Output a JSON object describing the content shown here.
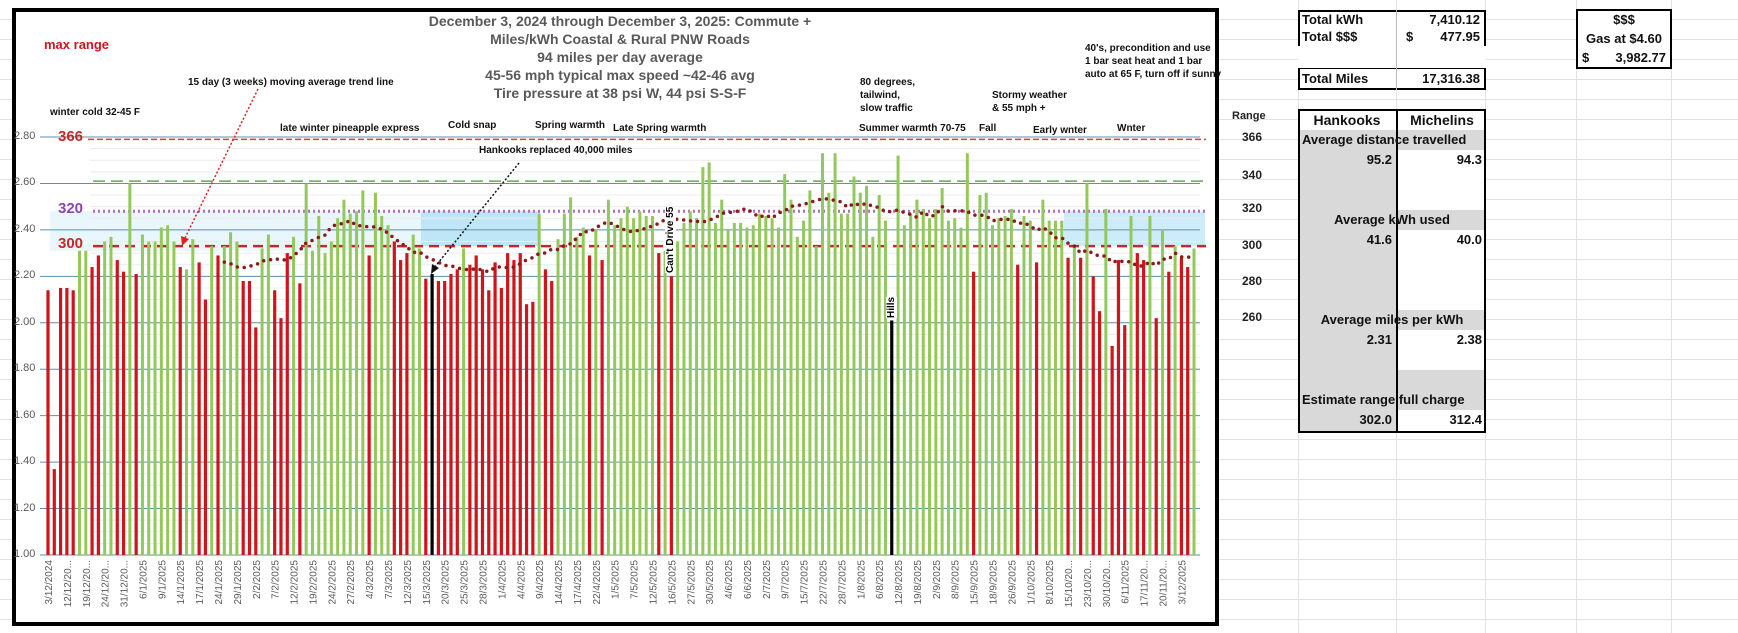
{
  "chart_data": {
    "type": "bar",
    "title_lines": [
      "December 3, 2024 through December 3,  2025: Commute +",
      "Miles/kWh Coastal & Rural PNW Roads",
      "94 miles per day average",
      "45-56 mph typical max speed ~42-46 avg",
      "Tire pressure at 38 psi W, 44 psi S-S-F"
    ],
    "ylim": [
      1.0,
      2.8
    ],
    "y_ticks": [
      "1.00",
      "1.20",
      "1.40",
      "1.60",
      "1.80",
      "2.00",
      "2.20",
      "2.40",
      "2.60",
      "2.80"
    ],
    "x_tick_labels": [
      "3/12/2024",
      "12/12/20...",
      "19/12/20...",
      "24/12/20...",
      "31/12/20...",
      "6/1/2025",
      "9/1/2025",
      "14/1/2025",
      "17/1/2025",
      "24/1/2025",
      "29/1/2025",
      "2/2/2025",
      "7/2/2025",
      "12/2/2025",
      "19/2/2025",
      "24/2/2025",
      "27/2/2025",
      "4/3/2025",
      "7/3/2025",
      "12/3/2025",
      "15/3/2025",
      "20/3/2025",
      "25/3/2025",
      "28/3/2025",
      "1/4/2025",
      "4/4/2025",
      "9/4/2025",
      "14/4/2025",
      "17/4/2025",
      "22/4/2025",
      "1/5/2025",
      "7/5/2025",
      "12/5/2025",
      "16/5/2025",
      "27/5/2025",
      "30/5/2025",
      "4/6/2025",
      "6/6/2025",
      "2/7/2025",
      "9/7/2025",
      "15/7/2025",
      "22/7/2025",
      "28/7/2025",
      "1/8/2025",
      "6/8/2025",
      "12/8/2025",
      "19/8/2025",
      "2/9/2025",
      "8/9/2025",
      "15/9/2025",
      "18/9/2025",
      "26/9/2025",
      "1/10/2025",
      "8/10/2025",
      "15/10/20...",
      "23/10/20...",
      "30/10/20...",
      "6/11/2025",
      "17/11/20...",
      "20/11/20...",
      "3/12/2025"
    ],
    "values": [
      2.14,
      1.37,
      2.15,
      2.15,
      2.14,
      2.31,
      2.31,
      2.24,
      2.29,
      2.35,
      2.37,
      2.27,
      2.22,
      2.6,
      2.21,
      2.38,
      2.35,
      2.35,
      2.41,
      2.42,
      2.35,
      2.24,
      2.23,
      2.36,
      2.26,
      2.1,
      2.33,
      2.29,
      2.33,
      2.39,
      2.35,
      2.18,
      2.18,
      1.98,
      2.32,
      2.38,
      2.14,
      2.02,
      2.3,
      2.37,
      2.17,
      2.6,
      2.31,
      2.46,
      2.3,
      2.35,
      2.45,
      2.53,
      2.47,
      2.48,
      2.57,
      2.29,
      2.56,
      2.46,
      2.42,
      2.35,
      2.27,
      2.3,
      2.38,
      2.32,
      2.19,
      2.21,
      2.18,
      2.18,
      2.21,
      2.23,
      2.32,
      2.25,
      2.29,
      2.23,
      2.14,
      2.26,
      2.15,
      2.3,
      2.27,
      2.3,
      2.08,
      2.09,
      2.47,
      2.23,
      2.18,
      2.36,
      2.47,
      2.54,
      2.37,
      2.41,
      2.29,
      2.4,
      2.27,
      2.53,
      2.42,
      2.45,
      2.5,
      2.45,
      2.48,
      2.46,
      2.46,
      2.3,
      2.31,
      2.2,
      2.35,
      2.43,
      2.48,
      2.45,
      2.67,
      2.69,
      2.43,
      2.53,
      2.4,
      2.43,
      2.43,
      2.41,
      2.42,
      2.47,
      2.46,
      2.45,
      2.41,
      2.64,
      2.53,
      2.37,
      2.44,
      2.57,
      2.33,
      2.73,
      2.56,
      2.73,
      2.47,
      2.47,
      2.63,
      2.56,
      2.59,
      2.37,
      2.55,
      2.44,
      2.01,
      2.72,
      2.42,
      2.47,
      2.53,
      2.49,
      2.45,
      2.49,
      2.58,
      2.44,
      2.45,
      2.41,
      2.73,
      2.22,
      2.55,
      2.56,
      2.42,
      2.45,
      2.46,
      2.49,
      2.25,
      2.46,
      2.44,
      2.26,
      2.53,
      2.44,
      2.44,
      2.44,
      2.28,
      2.33,
      2.28,
      2.6,
      2.2,
      2.05,
      2.49,
      1.9,
      2.27,
      1.99,
      2.46,
      2.3,
      2.27,
      2.46,
      2.02,
      2.4,
      2.22,
      2.33,
      2.28,
      2.24,
      2.32
    ],
    "bar_kind": [
      "r",
      "r",
      "r",
      "r",
      "r",
      "g",
      "g",
      "r",
      "r",
      "g",
      "g",
      "r",
      "r",
      "g",
      "r",
      "g",
      "g",
      "g",
      "g",
      "g",
      "g",
      "r",
      "g",
      "g",
      "r",
      "r",
      "g",
      "r",
      "g",
      "g",
      "g",
      "r",
      "r",
      "r",
      "g",
      "g",
      "r",
      "r",
      "r",
      "g",
      "r",
      "g",
      "g",
      "g",
      "g",
      "g",
      "g",
      "g",
      "g",
      "g",
      "g",
      "r",
      "g",
      "g",
      "g",
      "r",
      "r",
      "r",
      "g",
      "g",
      "r",
      "k",
      "r",
      "r",
      "r",
      "r",
      "g",
      "r",
      "r",
      "r",
      "r",
      "r",
      "r",
      "r",
      "r",
      "r",
      "r",
      "r",
      "g",
      "r",
      "r",
      "g",
      "g",
      "g",
      "g",
      "g",
      "r",
      "g",
      "r",
      "g",
      "g",
      "g",
      "g",
      "g",
      "g",
      "g",
      "g",
      "r",
      "g",
      "r",
      "g",
      "g",
      "g",
      "g",
      "g",
      "g",
      "g",
      "g",
      "g",
      "g",
      "g",
      "g",
      "g",
      "g",
      "g",
      "g",
      "g",
      "g",
      "g",
      "g",
      "g",
      "g",
      "g",
      "g",
      "g",
      "g",
      "g",
      "g",
      "g",
      "g",
      "g",
      "g",
      "g",
      "g",
      "k",
      "g",
      "g",
      "g",
      "g",
      "g",
      "g",
      "g",
      "g",
      "g",
      "g",
      "g",
      "g",
      "r",
      "g",
      "g",
      "g",
      "g",
      "g",
      "g",
      "r",
      "g",
      "g",
      "r",
      "g",
      "g",
      "g",
      "g",
      "r",
      "g",
      "r",
      "g",
      "r",
      "r",
      "g",
      "r",
      "r",
      "r",
      "g",
      "r",
      "r",
      "g",
      "r",
      "g",
      "r",
      "g",
      "r",
      "r",
      "g"
    ],
    "colors": {
      "r": "#d0141b",
      "g": "#92c95a",
      "k": "#000000",
      "trend": "#8b1a1a"
    },
    "trend": {
      "label": "15 day  (3 weeks) moving average trend line",
      "window": 15
    },
    "reference_lines": [
      {
        "label": "366",
        "value": 2.79,
        "color": "#d9403a",
        "style": "dashed"
      },
      {
        "label": "",
        "value": 2.61,
        "color": "#6aa84f",
        "style": "dashed"
      },
      {
        "label": "320",
        "value": 2.48,
        "color": "#b36ac4",
        "style": "dotted"
      },
      {
        "label": "300",
        "value": 2.33,
        "color": "#c62828",
        "style": "dashed"
      }
    ],
    "grid": true,
    "legend": "none"
  },
  "annotations": {
    "max_range": "max range",
    "winter_cold": "winter cold  32-45 F",
    "late_winter": "late winter pineapple express",
    "cold_snap": "Cold snap",
    "spring": "Spring warmth",
    "late_spring": "Late Spring warmth",
    "hankooks": "Hankooks  replaced 40,000 miles",
    "summer": "Summer warmth 70-75",
    "eighty": [
      "80 degrees,",
      "tailwind,",
      "slow  traffic"
    ],
    "stormy": [
      "Stormy weather",
      "& 55 mph +"
    ],
    "fall": "Fall",
    "early_winter": "Early wnter",
    "winter": "Wnter",
    "forties": [
      "40's,  precondition and use",
      "1 bar seat heat and 1 bar",
      "auto at 65 F, turn off if sunny"
    ],
    "cant_drive": "Can't Drive 55",
    "hills": "Hills"
  },
  "range_column": {
    "header": "Range",
    "values": [
      "366",
      "340",
      "320",
      "300",
      "280",
      "260"
    ]
  },
  "totals": {
    "kwh_label": "Total kWh",
    "kwh_value": "7,410.12",
    "cost_label": "Total $$$",
    "cost_currency": "$",
    "cost_value": "477.95",
    "miles_label": "Total Miles",
    "miles_value": "17,316.38"
  },
  "gas": {
    "header": "$$$",
    "label": "Gas at $4.60",
    "currency": "$",
    "value": "3,982.77"
  },
  "comparison": {
    "col1": "Hankooks",
    "col2": "Michelins",
    "rows": [
      {
        "label": "Average distance travelled",
        "hankooks": "95.2",
        "michelins": "94.3"
      },
      {
        "label": "Average kWh used",
        "hankooks": "41.6",
        "michelins": "40.0"
      },
      {
        "label": "Average miles per kWh",
        "hankooks": "2.31",
        "michelins": "2.38"
      },
      {
        "label": "Estimate range full charge",
        "hankooks": "302.0",
        "michelins": "312.4"
      }
    ]
  }
}
